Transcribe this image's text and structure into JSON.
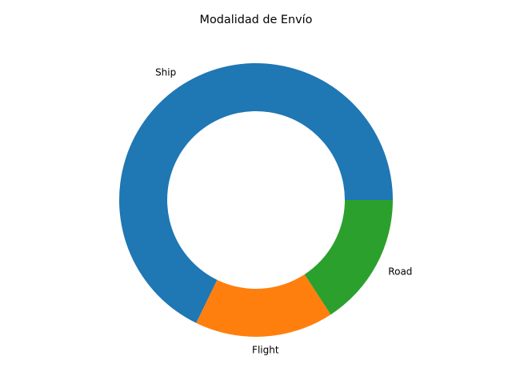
{
  "chart_data": {
    "type": "pie",
    "variant": "donut",
    "title": "Modalidad de Envío",
    "categories": [
      "Ship",
      "Flight",
      "Road"
    ],
    "values": [
      67.8,
      16.4,
      15.8
    ],
    "colors": [
      "#1f77b4",
      "#ff7f0e",
      "#2ca02c"
    ],
    "start_angle_deg": 0,
    "direction": "counterclockwise",
    "legend": "none"
  }
}
